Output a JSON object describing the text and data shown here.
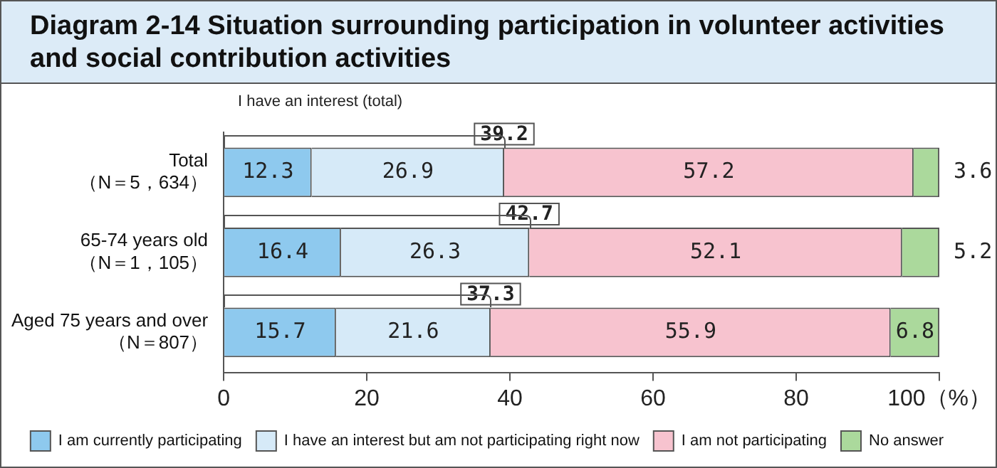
{
  "chart_data": {
    "type": "bar",
    "orientation": "horizontal",
    "stacked": true,
    "title": "Diagram 2-14 Situation surrounding participation in volunteer activities and social contribution activities",
    "categories": [
      "Total\n（N＝5，634）",
      "65-74 years old\n（N＝1，105）",
      "Aged 75 years and over\n（N＝807）"
    ],
    "series": [
      {
        "name": "I am currently participating",
        "color": "#8ec9ee",
        "values": [
          12.3,
          16.4,
          15.7
        ]
      },
      {
        "name": "I have an interest but am not participating right now",
        "color": "#d6eaf8",
        "values": [
          26.9,
          26.3,
          21.6
        ]
      },
      {
        "name": "I am not participating",
        "color": "#f7c3cf",
        "values": [
          57.2,
          52.1,
          55.9
        ]
      },
      {
        "name": "No answer",
        "color": "#abd99c",
        "values": [
          3.6,
          5.2,
          6.8
        ]
      }
    ],
    "xlim": [
      0,
      100
    ],
    "xticks": [
      0,
      20,
      40,
      60,
      80,
      {
        "value": 100,
        "label": "100（%）"
      }
    ],
    "data_labels": true,
    "grid": false,
    "legend": "bottom",
    "annotations": [
      "I have an interest (total)",
      {
        "text": "39.2",
        "x": 39.2,
        "y": "Total\n（N＝5，634）"
      },
      {
        "text": "42.7",
        "x": 42.7,
        "y": "65-74 years old\n（N＝1，105）"
      },
      {
        "text": "37.3",
        "x": 37.3,
        "y": "Aged 75 years and over\n（N＝807）"
      }
    ]
  }
}
